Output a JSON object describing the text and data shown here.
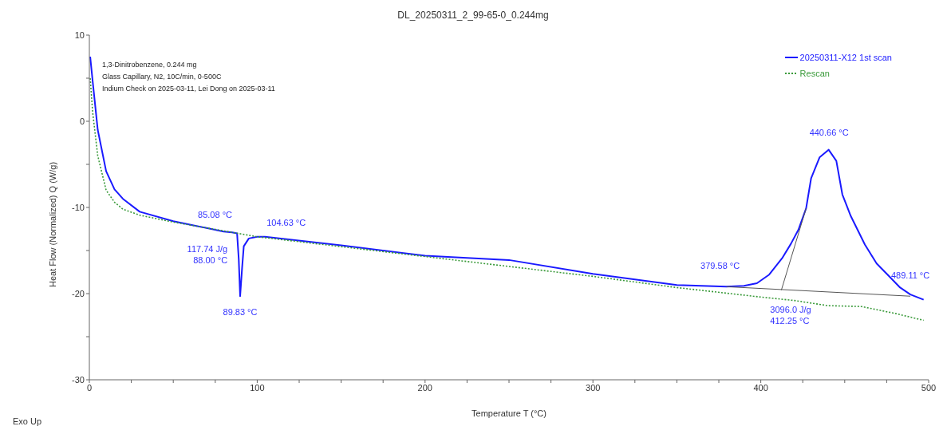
{
  "chart_data": {
    "type": "line",
    "title": "DL_20250311_2_99-65-0_0.244mg",
    "xlabel": "Temperature T (°C)",
    "ylabel": "Heat Flow (Normalized) Q (W/g)",
    "xlim": [
      0,
      500
    ],
    "xticks": [
      0,
      {
        "value": 25,
        "label": null
      },
      {
        "value": 50,
        "label": null
      },
      {
        "value": 75,
        "label": null
      },
      100,
      {
        "value": 125,
        "label": null
      },
      {
        "value": 150,
        "label": null
      },
      {
        "value": 175,
        "label": null
      },
      200,
      {
        "value": 225,
        "label": null
      },
      {
        "value": 250,
        "label": null
      },
      {
        "value": 275,
        "label": null
      },
      300,
      {
        "value": 325,
        "label": null
      },
      {
        "value": 350,
        "label": null
      },
      {
        "value": 375,
        "label": null
      },
      400,
      {
        "value": 425,
        "label": null
      },
      {
        "value": 450,
        "label": null
      },
      {
        "value": 475,
        "label": null
      },
      500
    ],
    "ylim": [
      -30,
      10
    ],
    "yticks": [
      -30,
      {
        "value": -25,
        "label": null
      },
      -20,
      {
        "value": -15,
        "label": null
      },
      -10,
      {
        "value": -5,
        "label": null
      },
      0,
      {
        "value": 5,
        "label": null
      },
      10
    ],
    "legend": "top right",
    "marker": "none",
    "series": [
      {
        "name": "20250311-X12 1st scan",
        "color": "#1a1aff",
        "line_style": "solid",
        "x": [
          0.5,
          2,
          5,
          10,
          15,
          20,
          30,
          50,
          80,
          85,
          88,
          89,
          89.83,
          91,
          92,
          95,
          100,
          104.63,
          150,
          200,
          250,
          300,
          350,
          379.58,
          390,
          397.7,
          405,
          412.7,
          418,
          422.4,
          427,
          430,
          435,
          440.4,
          445,
          448.6,
          453.6,
          462,
          469,
          476,
          483,
          489.11,
          497
        ],
        "values": [
          7.5,
          4.6,
          -1.0,
          -5.8,
          -7.9,
          -9.0,
          -10.5,
          -11.6,
          -12.8,
          -12.9,
          -13.0,
          -16,
          -20.3,
          -17,
          -14.5,
          -13.6,
          -13.4,
          -13.4,
          -14.4,
          -15.6,
          -16.1,
          -17.7,
          -19.0,
          -19.2,
          -19.1,
          -18.8,
          -17.8,
          -15.9,
          -14.2,
          -12.6,
          -10.1,
          -6.6,
          -4.2,
          -3.3,
          -4.6,
          -8.5,
          -11.0,
          -14.3,
          -16.5,
          -17.9,
          -19.3,
          -20.1,
          -20.7
        ]
      },
      {
        "name": "Rescan",
        "color": "#3a9a3a",
        "line_style": "dotted",
        "x": [
          0.5,
          2,
          5,
          10,
          15,
          20,
          30,
          50,
          100,
          200,
          300,
          350,
          400,
          420,
          440,
          460,
          480,
          497
        ],
        "values": [
          5,
          1,
          -4,
          -8,
          -9.4,
          -10.2,
          -10.9,
          -11.7,
          -13.4,
          -15.7,
          -18.0,
          -19.3,
          -20.4,
          -20.8,
          -21.4,
          -21.5,
          -22.3,
          -23.1
        ]
      },
      {
        "color": "#555555",
        "line_style": "solid",
        "x": [
          379.58,
          489.11
        ],
        "values": [
          -19.2,
          -20.3
        ]
      },
      {
        "color": "#555555",
        "line_style": "solid",
        "x": [
          412.25,
          427
        ],
        "values": [
          -19.6,
          -10.1
        ]
      }
    ],
    "annotations": [
      "1,3-Dinitrobenzene, 0.244 mg",
      "Glass Capillary, N2, 10C/min, 0-500C",
      "Indium Check on 2025-03-11, Lei Dong on 2025-03-11",
      "Exo Up",
      {
        "text": "85.08 °C",
        "x": 85.08,
        "y": -12.9
      },
      {
        "text": "104.63 °C",
        "x": 104.63,
        "y": -13.4
      },
      {
        "text": "117.74 J/g",
        "x": 88.0,
        "y": -13.0
      },
      {
        "text": "88.00 °C",
        "x": 88.0,
        "y": -13.0
      },
      {
        "text": "89.83 °C",
        "x": 89.83,
        "y": -20.3
      },
      {
        "text": "379.58 °C",
        "x": 379.58,
        "y": -19.2
      },
      {
        "text": "440.66 °C",
        "x": 440.66,
        "y": -3.3
      },
      {
        "text": "489.11 °C",
        "x": 489.11,
        "y": -20.3
      },
      {
        "text": "3096.0 J/g",
        "x": 412.25,
        "y": -19.6
      },
      {
        "text": "412.25 °C",
        "x": 412.25,
        "y": -19.6
      }
    ]
  }
}
